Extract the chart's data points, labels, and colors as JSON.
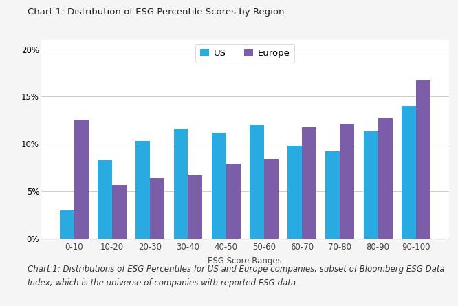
{
  "title": "Chart 1: Distribution of ESG Percentile Scores by Region",
  "categories": [
    "0-10",
    "10-20",
    "20-30",
    "30-40",
    "40-50",
    "50-60",
    "60-70",
    "70-80",
    "80-90",
    "90-100"
  ],
  "us_values": [
    0.03,
    0.083,
    0.103,
    0.116,
    0.112,
    0.12,
    0.098,
    0.092,
    0.113,
    0.14
  ],
  "europe_values": [
    0.126,
    0.057,
    0.064,
    0.067,
    0.079,
    0.084,
    0.118,
    0.121,
    0.127,
    0.167
  ],
  "us_color": "#29ABE2",
  "europe_color": "#7B5EA7",
  "xlabel": "ESG Score Ranges",
  "ylabel": "",
  "ylim": [
    0,
    0.21
  ],
  "yticks": [
    0,
    0.05,
    0.1,
    0.15,
    0.2
  ],
  "legend_labels": [
    "US",
    "Europe"
  ],
  "caption_line1": "Chart 1: Distributions of ESG Percentiles for US and Europe companies, subset of Bloomberg ESG Data",
  "caption_line2": "Index, which is the universe of companies with reported ESG data.",
  "bar_width": 0.38,
  "background_color": "#F5F5F5",
  "plot_bg_color": "#FFFFFF",
  "grid_color": "#CCCCCC",
  "title_fontsize": 9.5,
  "axis_fontsize": 8.5,
  "legend_fontsize": 9.5,
  "caption_fontsize": 8.5,
  "tick_fontsize": 8.5
}
